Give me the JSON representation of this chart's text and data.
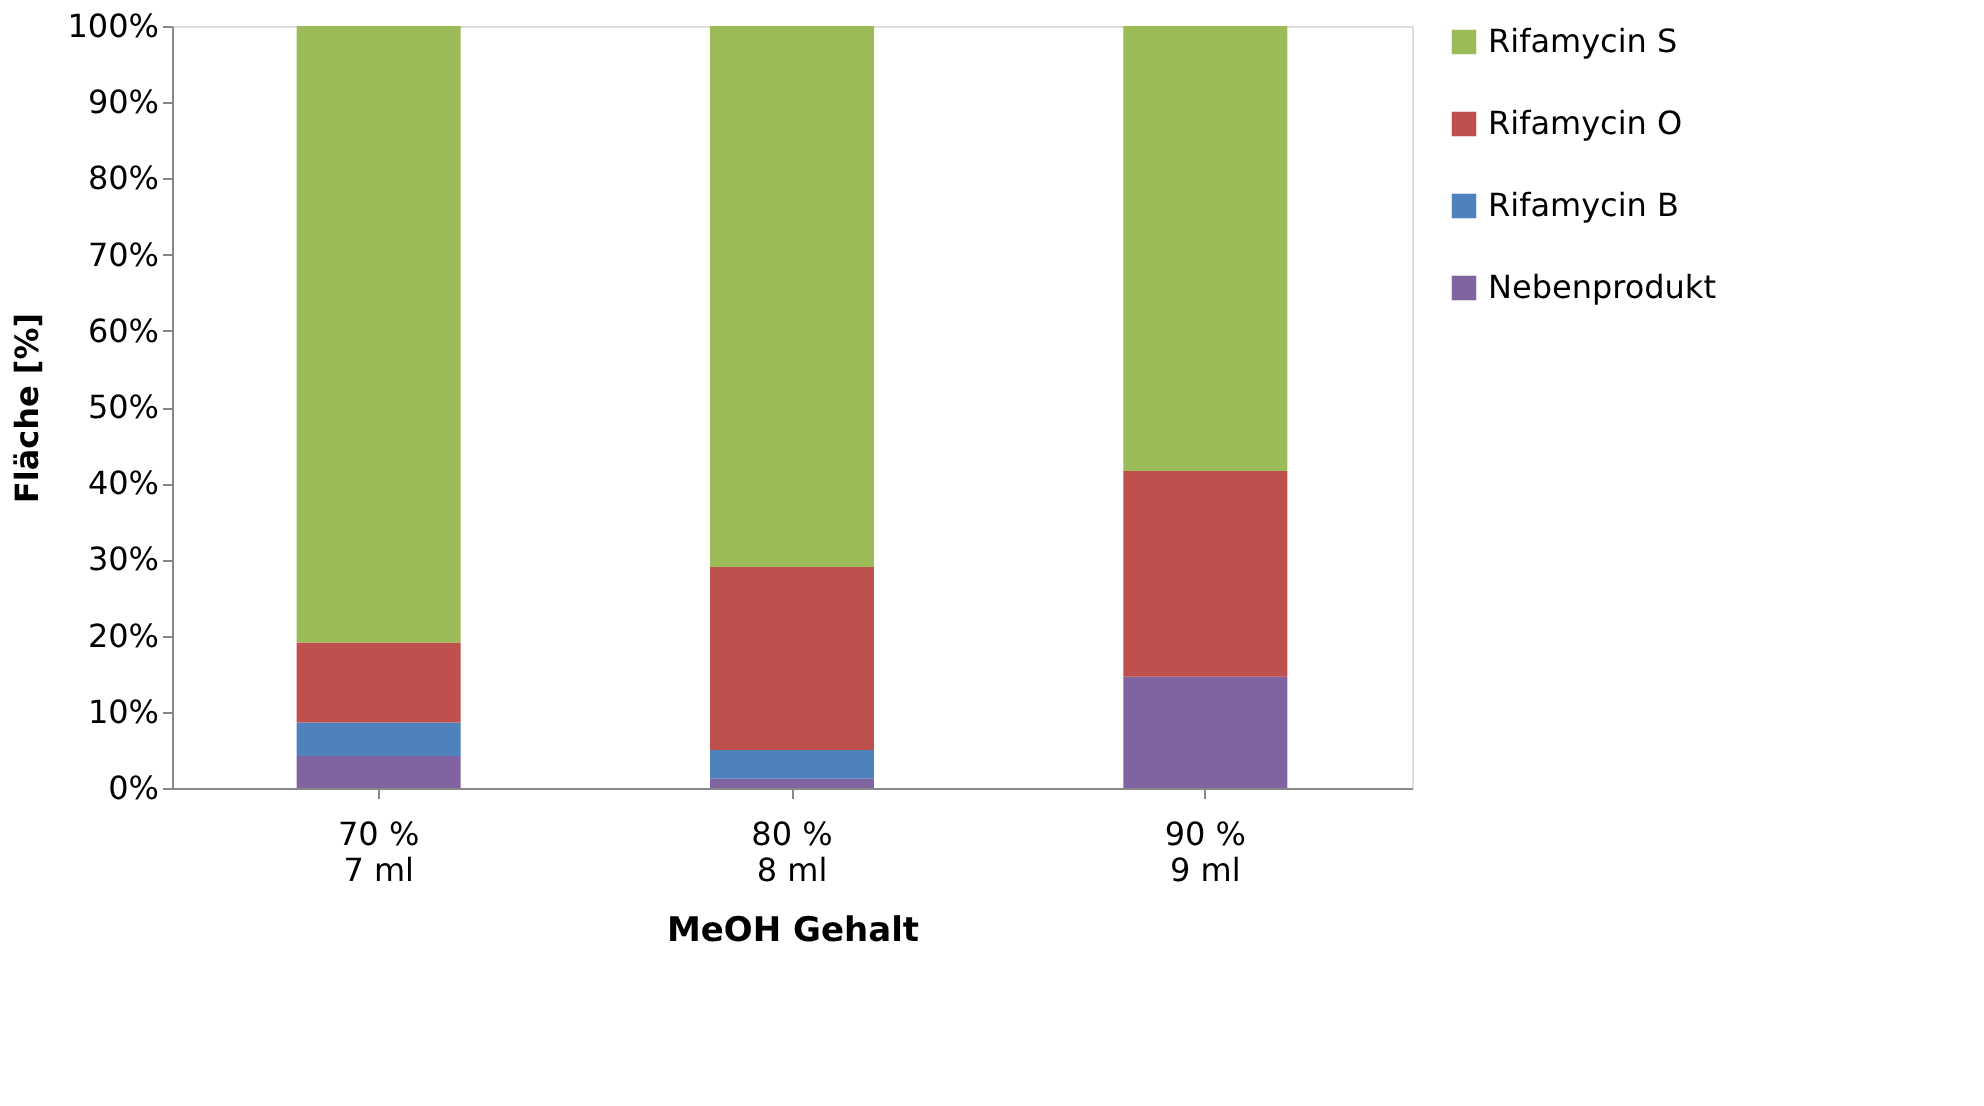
{
  "chart_data": {
    "type": "bar",
    "stacked": true,
    "xlabel": "MeOH Gehalt",
    "ylabel": "Fläche [%]",
    "categories": [
      "70 %\n7 ml",
      "80 %\n8 ml",
      "90 %\n9 ml"
    ],
    "series": [
      {
        "name": "Nebenprodukt",
        "color": "#8064a2",
        "values": [
          4.2,
          1.2,
          14.6
        ]
      },
      {
        "name": "Rifamycin B",
        "color": "#4f81bd",
        "values": [
          4.4,
          3.8,
          0
        ]
      },
      {
        "name": "Rifamycin O",
        "color": "#c0504d",
        "values": [
          10.5,
          24.0,
          27.0
        ]
      },
      {
        "name": "Rifamycin S",
        "color": "#9bbb59",
        "values": [
          80.9,
          71.0,
          58.4
        ]
      }
    ],
    "ylim": [
      0,
      100
    ],
    "yticks": [
      {
        "value": 0,
        "label": "0%"
      },
      {
        "value": 10,
        "label": "10%"
      },
      {
        "value": 20,
        "label": "20%"
      },
      {
        "value": 30,
        "label": "30%"
      },
      {
        "value": 40,
        "label": "40%"
      },
      {
        "value": 50,
        "label": "50%"
      },
      {
        "value": 60,
        "label": "60%"
      },
      {
        "value": 70,
        "label": "70%"
      },
      {
        "value": 80,
        "label": "80%"
      },
      {
        "value": 90,
        "label": "90%"
      },
      {
        "value": 100,
        "label": "100%"
      }
    ],
    "grid": false,
    "legend": "right"
  }
}
